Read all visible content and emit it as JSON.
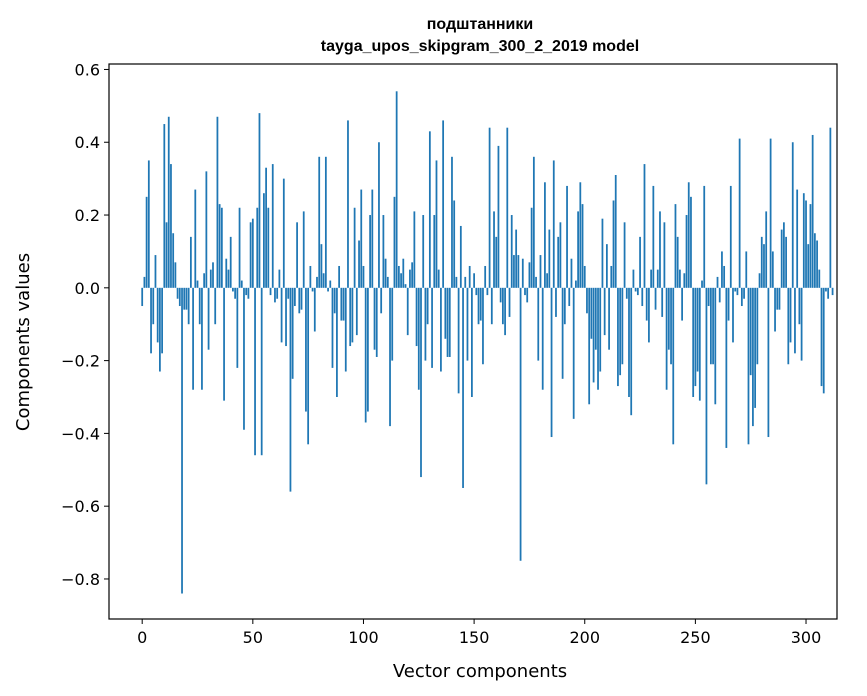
{
  "chart_data": {
    "type": "bar",
    "title": "подштанники",
    "subtitle": "tayga_upos_skipgram_300_2_2019 model",
    "xlabel": "Vector components",
    "ylabel": "Components values",
    "xlim": [
      -15,
      314
    ],
    "ylim": [
      -0.91,
      0.615
    ],
    "xticks": [
      0,
      50,
      100,
      150,
      200,
      250,
      300
    ],
    "yticks": [
      0.6,
      0.4,
      0.2,
      0.0,
      -0.2,
      -0.4,
      -0.6,
      -0.8
    ],
    "ytick_labels": [
      "0.6",
      "0.4",
      "0.2",
      "0.0",
      "−0.2",
      "−0.4",
      "−0.6",
      "−0.8"
    ],
    "bar_color": "#1f77b4",
    "values": [
      -0.05,
      0.03,
      0.25,
      0.35,
      -0.18,
      -0.1,
      0.09,
      -0.15,
      -0.23,
      -0.18,
      0.45,
      0.18,
      0.47,
      0.34,
      0.15,
      0.07,
      -0.03,
      -0.05,
      -0.84,
      -0.06,
      -0.06,
      -0.1,
      0.14,
      -0.28,
      0.27,
      0.02,
      -0.1,
      -0.28,
      0.04,
      0.32,
      -0.17,
      0.05,
      0.07,
      -0.1,
      0.47,
      0.23,
      0.22,
      -0.31,
      0.08,
      0.05,
      0.14,
      -0.01,
      -0.03,
      -0.22,
      0.22,
      0.02,
      -0.39,
      -0.02,
      -0.03,
      0.18,
      0.19,
      -0.46,
      0.22,
      0.48,
      -0.46,
      0.26,
      0.33,
      0.22,
      -0.02,
      0.34,
      -0.04,
      -0.03,
      0.05,
      -0.15,
      0.3,
      -0.16,
      -0.03,
      -0.56,
      -0.25,
      -0.05,
      0.18,
      -0.07,
      -0.06,
      0.21,
      -0.34,
      -0.43,
      0.06,
      -0.01,
      -0.12,
      0.03,
      0.36,
      0.12,
      0.04,
      0.36,
      -0.01,
      0.02,
      -0.22,
      -0.07,
      -0.3,
      0.06,
      -0.09,
      -0.09,
      -0.23,
      0.46,
      -0.16,
      -0.15,
      0.22,
      -0.13,
      0.13,
      0.27,
      0.06,
      -0.37,
      -0.34,
      0.2,
      0.27,
      -0.17,
      -0.19,
      0.4,
      -0.07,
      0.2,
      0.08,
      0.03,
      -0.38,
      -0.2,
      0.25,
      0.54,
      0.06,
      0.04,
      0.08,
      0.01,
      -0.13,
      0.05,
      0.07,
      0.21,
      -0.16,
      -0.28,
      -0.52,
      0.2,
      -0.2,
      -0.1,
      0.43,
      -0.22,
      0.2,
      0.35,
      0.05,
      -0.23,
      0.46,
      -0.14,
      -0.19,
      -0.19,
      0.36,
      0.24,
      0.03,
      -0.29,
      0.17,
      -0.55,
      0.03,
      -0.2,
      0.06,
      -0.3,
      0.04,
      -0.02,
      -0.1,
      -0.09,
      -0.21,
      0.06,
      -0.02,
      0.44,
      -0.1,
      0.21,
      0.14,
      0.39,
      -0.04,
      -0.1,
      -0.13,
      0.44,
      -0.08,
      0.2,
      0.09,
      0.16,
      0.09,
      -0.75,
      0.08,
      -0.02,
      -0.04,
      0.07,
      0.22,
      0.36,
      0.03,
      -0.2,
      0.09,
      -0.28,
      0.29,
      0.04,
      0.16,
      -0.41,
      0.35,
      -0.08,
      0.14,
      0.18,
      -0.25,
      -0.1,
      0.28,
      -0.05,
      0.08,
      -0.36,
      0.02,
      0.21,
      0.29,
      0.23,
      0.06,
      -0.07,
      -0.32,
      -0.14,
      -0.26,
      -0.17,
      -0.28,
      -0.23,
      0.19,
      -0.13,
      0.12,
      -0.17,
      0.06,
      0.24,
      0.31,
      -0.27,
      -0.24,
      -0.21,
      0.18,
      -0.03,
      -0.3,
      -0.35,
      0.05,
      -0.01,
      -0.02,
      0.14,
      -0.05,
      0.34,
      -0.09,
      -0.15,
      0.05,
      0.28,
      -0.06,
      0.05,
      0.21,
      -0.08,
      0.18,
      -0.28,
      -0.17,
      -0.21,
      -0.43,
      0.23,
      0.14,
      0.05,
      -0.09,
      0.04,
      0.2,
      0.29,
      0.25,
      -0.3,
      -0.27,
      -0.23,
      -0.31,
      0.02,
      0.28,
      -0.54,
      -0.05,
      -0.21,
      -0.21,
      -0.32,
      0.03,
      -0.04,
      0.1,
      0.06,
      -0.44,
      -0.09,
      0.28,
      -0.15,
      -0.01,
      -0.02,
      0.41,
      -0.05,
      -0.03,
      0.1,
      -0.43,
      -0.24,
      -0.38,
      -0.33,
      -0.21,
      0.04,
      0.14,
      0.12,
      0.21,
      -0.41,
      0.41,
      0.1,
      -0.12,
      -0.06,
      -0.06,
      0.16,
      0.18,
      0.14,
      -0.21,
      -0.15,
      0.4,
      -0.18,
      0.27,
      -0.1,
      -0.2,
      0.26,
      0.24,
      0.12,
      0.23,
      0.42,
      0.15,
      0.13,
      0.05,
      -0.27,
      -0.29,
      -0.01,
      -0.03,
      0.44,
      -0.02
    ]
  }
}
